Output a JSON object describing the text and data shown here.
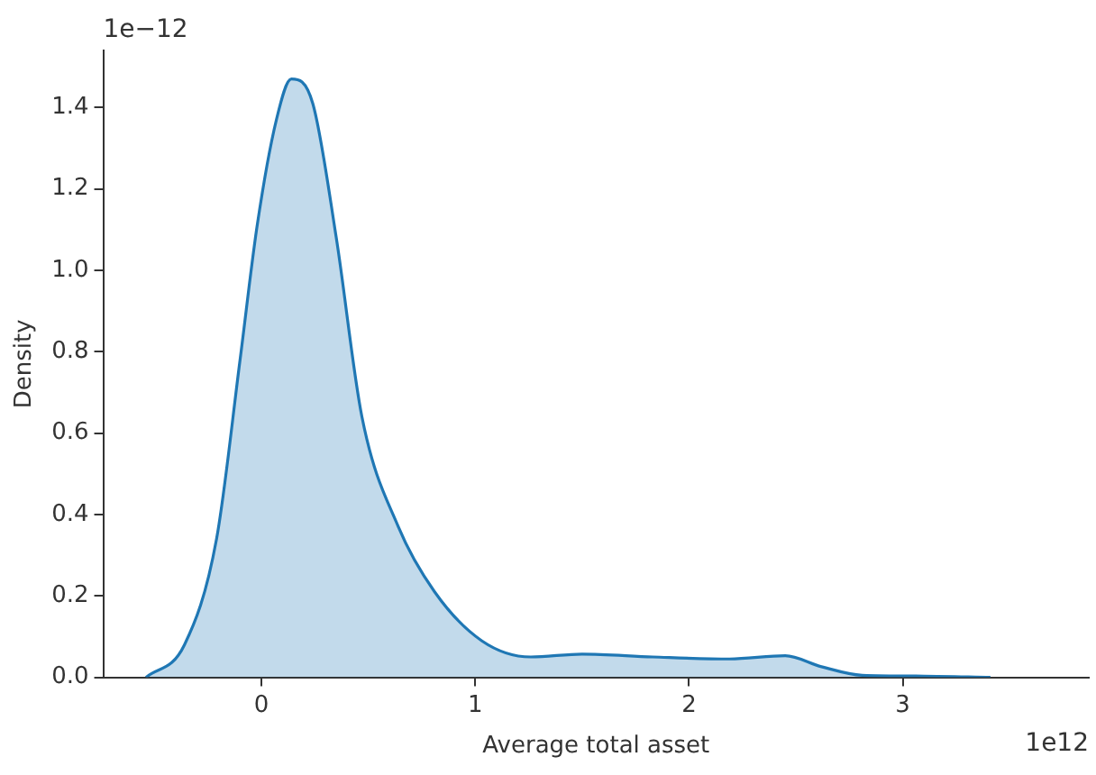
{
  "chart_data": {
    "type": "area",
    "xlabel": "Average total asset",
    "ylabel": "Density",
    "annotations": [
      "1e−12",
      "1e12"
    ],
    "series": [
      {
        "color": "#1f77b4",
        "x": [
          -0.54,
          -0.36,
          -0.21,
          -0.1,
          -0.02,
          0.07,
          0.14,
          0.24,
          0.35,
          0.47,
          0.64,
          0.81,
          1.03,
          1.26,
          1.5,
          1.83,
          2.19,
          2.45,
          2.62,
          2.81,
          3.1,
          3.41
        ],
        "values": [
          0,
          0.08,
          0.34,
          0.78,
          1.11,
          1.37,
          1.47,
          1.41,
          1.08,
          0.64,
          0.37,
          0.21,
          0.09,
          0.05,
          0.057,
          0.05,
          0.045,
          0.053,
          0.026,
          0.005,
          0.003,
          0
        ]
      }
    ],
    "xlim": [
      -0.74,
      3.87
    ],
    "xticks": [
      0,
      1,
      2,
      3
    ],
    "ylim": [
      0,
      1.54
    ],
    "yticks": [
      {
        "value": 0,
        "label": "0.0"
      },
      {
        "value": 0.2,
        "label": "0.2"
      },
      {
        "value": 0.4,
        "label": "0.4"
      },
      {
        "value": 0.6,
        "label": "0.6"
      },
      {
        "value": 0.8,
        "label": "0.8"
      },
      {
        "value": 1.0,
        "label": "1.0"
      },
      {
        "value": 1.2,
        "label": "1.2"
      },
      {
        "value": 1.4,
        "label": "1.4"
      }
    ],
    "grid": false,
    "legend": false
  }
}
